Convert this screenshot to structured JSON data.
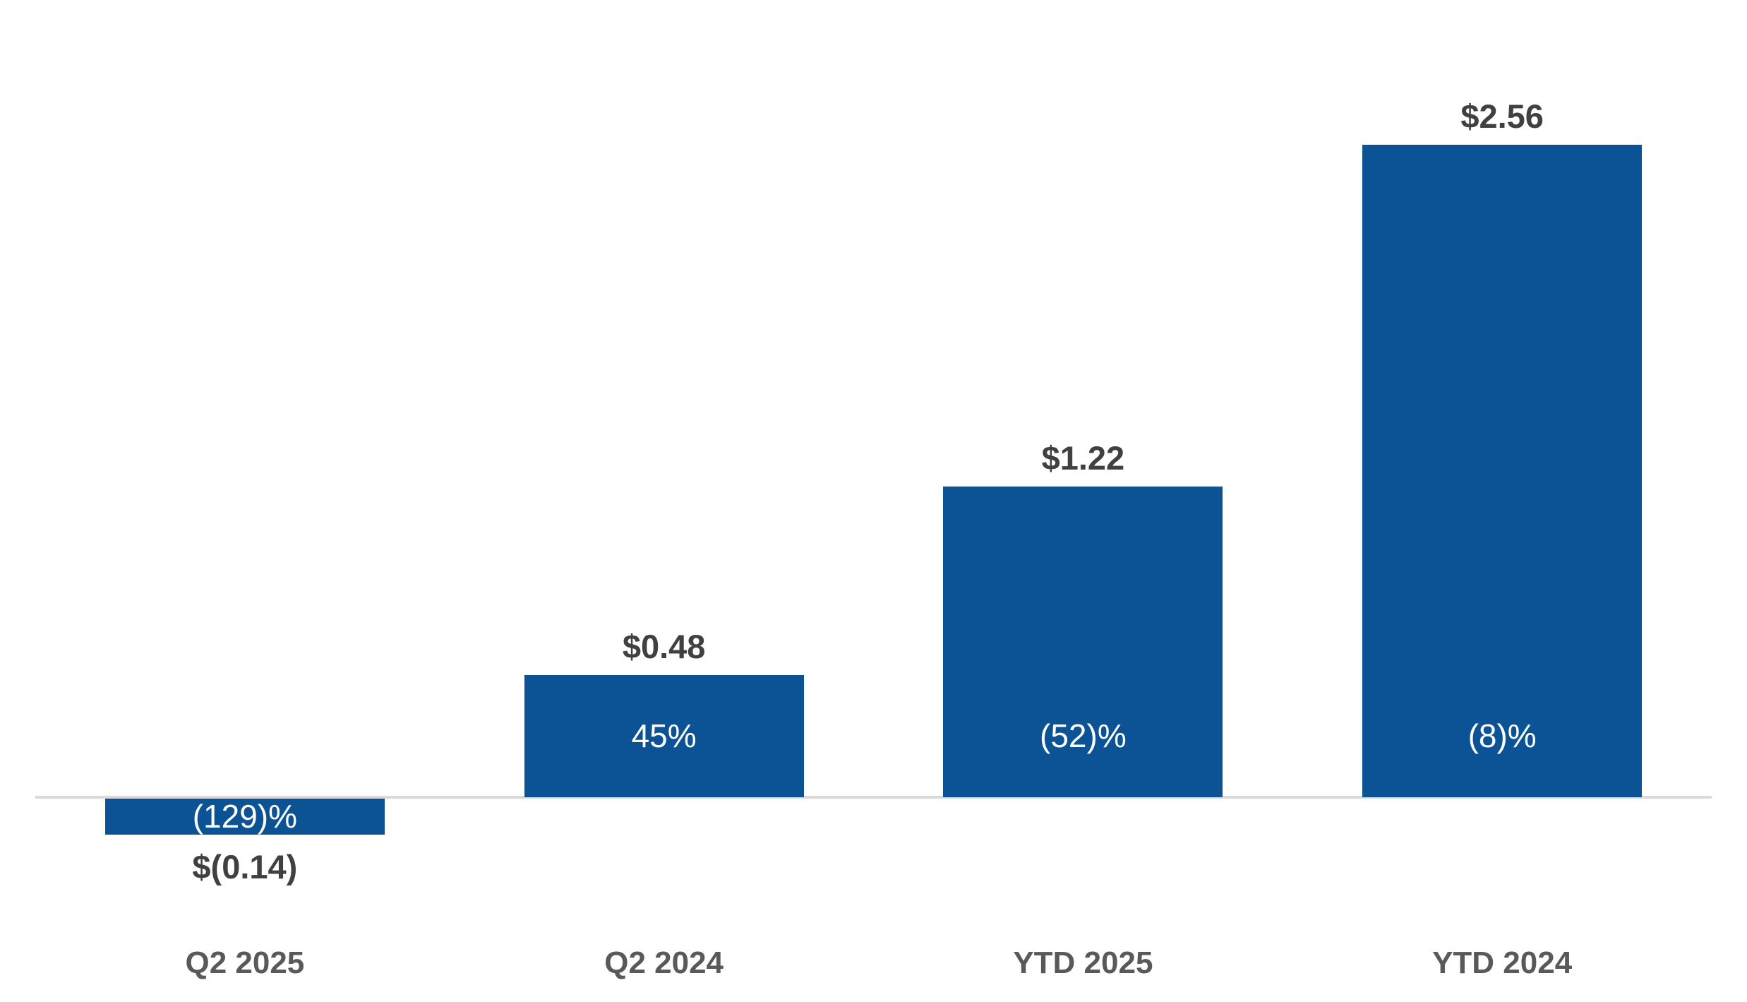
{
  "chart_data": {
    "type": "bar",
    "title": "",
    "xlabel": "",
    "ylabel": "",
    "categories": [
      "Q2 2025",
      "Q2 2024",
      "YTD 2025",
      "YTD 2024"
    ],
    "values": [
      -0.14,
      0.48,
      1.22,
      2.56
    ],
    "value_labels": [
      "$(0.14)",
      "$0.48",
      "$1.22",
      "$2.56"
    ],
    "pct_change_labels": [
      "(129)%",
      "45%",
      "(52)%",
      "(8)%"
    ],
    "ylim": [
      -0.3,
      2.9
    ],
    "grid": false,
    "legend": false,
    "y_axis_visible": false
  },
  "colors": {
    "bar": "#0B5394",
    "value_label": "#404040",
    "pct_label": "#FFFFFF",
    "category_label": "#595959",
    "axis_line": "#D9D9D9",
    "background": "#FFFFFF"
  }
}
